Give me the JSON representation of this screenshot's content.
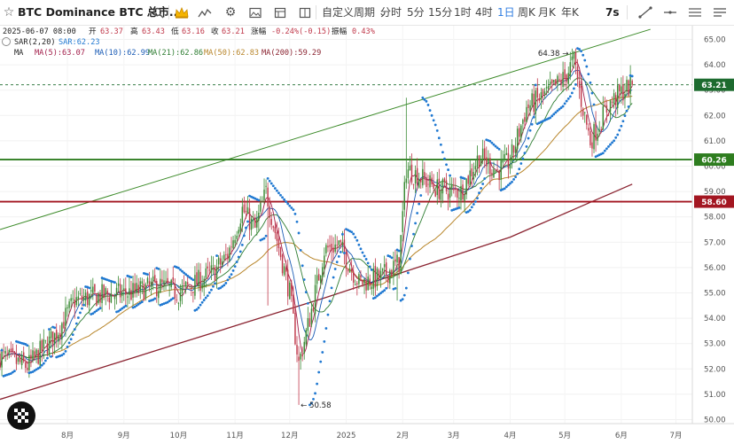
{
  "toolbar": {
    "star_icon": "star-icon",
    "symbol": "BTC Dominance BTC 总市...",
    "search_icon": "search-icon",
    "crown_icon": "crown-icon",
    "indicator_icon": "indicator-icon",
    "settings_icon": "gear-icon",
    "snapshot_icon": "snapshot-icon",
    "layout_icon": "layout-icon",
    "custom_period": "自定义周期",
    "intervals": [
      "分时",
      "5分",
      "15分",
      "1时",
      "4时",
      "1日",
      "周K",
      "月K",
      "年K"
    ],
    "active_interval": "1日",
    "countdown": "7s",
    "accent_color": "#2f7de1"
  },
  "legend": {
    "date": "2025-06-07 08:00",
    "open_label": "开",
    "open": "63.37",
    "high_label": "高",
    "high": "63.43",
    "low_label": "低",
    "low": "63.16",
    "close_label": "收",
    "close": "63.21",
    "change_label": "涨幅",
    "change": "-0.24%(-0.15)",
    "amp_label": "振幅",
    "amp": "0.43%",
    "sar_name": "SAR(2,20)",
    "sar_value": "SAR:62.23",
    "ma_name": "MA",
    "ma5": "MA(5):63.07",
    "ma10": "MA(10):62.99",
    "ma21": "MA(21):62.86",
    "ma50": "MA(50):62.83",
    "ma200": "MA(200):59.29"
  },
  "chart_data": {
    "type": "candlestick",
    "title": "BTC Dominance",
    "y_range": [
      50.0,
      65.0
    ],
    "y_ticks": [
      "65.00",
      "64.00",
      "63.00",
      "62.00",
      "61.00",
      "60.00",
      "59.00",
      "58.00",
      "57.00",
      "56.00",
      "55.00",
      "54.00",
      "53.00",
      "52.00",
      "51.00",
      "50.00"
    ],
    "x_range": [
      "2024-06-25",
      "2025-07-10"
    ],
    "x_ticks": [
      {
        "label": "8月",
        "date": "2024-08-01"
      },
      {
        "label": "9月",
        "date": "2024-09-01"
      },
      {
        "label": "10月",
        "date": "2024-10-01"
      },
      {
        "label": "11月",
        "date": "2024-11-01"
      },
      {
        "label": "12月",
        "date": "2024-12-01"
      },
      {
        "label": "2025",
        "date": "2025-01-01"
      },
      {
        "label": "2月",
        "date": "2025-02-01"
      },
      {
        "label": "3月",
        "date": "2025-03-01"
      },
      {
        "label": "4月",
        "date": "2025-04-01"
      },
      {
        "label": "5月",
        "date": "2025-05-01"
      },
      {
        "label": "6月",
        "date": "2025-06-01"
      },
      {
        "label": "7月",
        "date": "2025-07-01"
      }
    ],
    "price_path": [
      [
        "2024-06-25",
        52.5
      ],
      [
        "2024-07-10",
        52.1
      ],
      [
        "2024-07-25",
        53.3
      ],
      [
        "2024-08-05",
        54.7
      ],
      [
        "2024-08-20",
        54.9
      ],
      [
        "2024-09-05",
        55.0
      ],
      [
        "2024-09-20",
        55.3
      ],
      [
        "2024-10-01",
        55.0
      ],
      [
        "2024-10-20",
        55.8
      ],
      [
        "2024-10-28",
        56.5
      ],
      [
        "2024-11-05",
        58.3
      ],
      [
        "2024-11-12",
        57.5
      ],
      [
        "2024-11-18",
        59.0
      ],
      [
        "2024-11-25",
        56.8
      ],
      [
        "2024-12-01",
        55.0
      ],
      [
        "2024-12-06",
        52.2
      ],
      [
        "2024-12-12",
        54.0
      ],
      [
        "2024-12-20",
        56.7
      ],
      [
        "2024-12-28",
        56.9
      ],
      [
        "2025-01-08",
        55.4
      ],
      [
        "2025-01-20",
        55.6
      ],
      [
        "2025-01-30",
        56.2
      ],
      [
        "2025-02-03",
        59.9
      ],
      [
        "2025-02-10",
        59.6
      ],
      [
        "2025-02-20",
        59.1
      ],
      [
        "2025-03-05",
        59.0
      ],
      [
        "2025-03-15",
        60.4
      ],
      [
        "2025-03-25",
        59.8
      ],
      [
        "2025-04-01",
        60.2
      ],
      [
        "2025-04-10",
        62.3
      ],
      [
        "2025-04-22",
        62.9
      ],
      [
        "2025-05-01",
        63.5
      ],
      [
        "2025-05-06",
        64.2
      ],
      [
        "2025-05-10",
        62.6
      ],
      [
        "2025-05-15",
        61.0
      ],
      [
        "2025-05-25",
        62.4
      ],
      [
        "2025-06-01",
        62.9
      ],
      [
        "2025-06-07",
        63.21
      ]
    ],
    "annotations": [
      {
        "text": "64.38",
        "date": "2025-05-06",
        "value": 64.38
      },
      {
        "text": "50.58",
        "date": "2024-12-06",
        "value": 50.58
      }
    ],
    "price_lines": [
      {
        "label": "63.21",
        "value": 63.21,
        "color": "#1d6b2f",
        "style": "dashed"
      },
      {
        "label": "60.26",
        "value": 60.26,
        "color": "#2e7d1f",
        "style": "solid"
      },
      {
        "label": "58.60",
        "value": 58.6,
        "color": "#a31621",
        "style": "solid"
      }
    ],
    "trendline": {
      "color": "#3d8b2a",
      "points": [
        [
          "2024-06-25",
          57.5
        ],
        [
          "2025-06-17",
          65.4
        ]
      ]
    },
    "ma200": {
      "color": "#8a2330",
      "points": [
        [
          "2024-06-25",
          50.8
        ],
        [
          "2024-12-20",
          54.8
        ],
        [
          "2025-04-01",
          57.2
        ],
        [
          "2025-06-07",
          59.29
        ]
      ]
    },
    "series_colors": {
      "up": "#3a8a34",
      "down": "#c0394b",
      "sar": "#1f78d1",
      "ma5": "#a21e4a",
      "ma10": "#1a5bb5",
      "ma21": "#2e7d32",
      "ma50": "#b8862b",
      "ma200": "#8a2330"
    },
    "grid": true
  },
  "watermark_icon": "checker-logo-icon"
}
